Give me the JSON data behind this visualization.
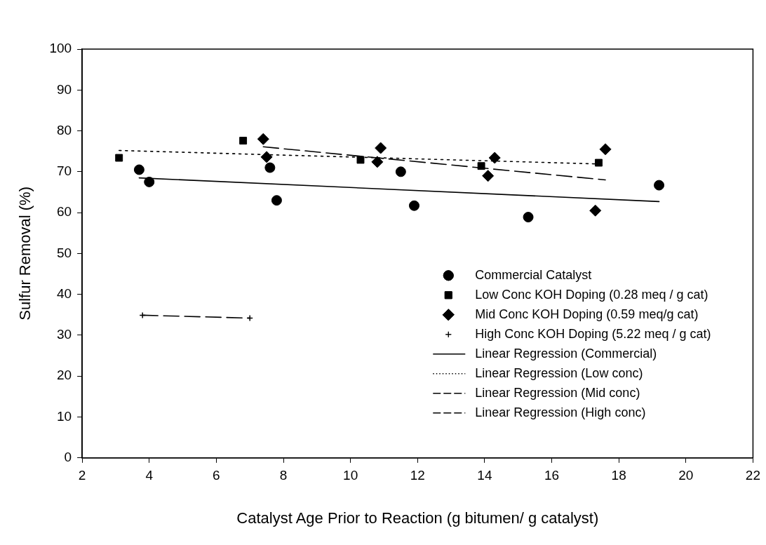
{
  "chart_data": {
    "type": "scatter",
    "xlabel": "Catalyst Age Prior to Reaction (g bitumen/ g catalyst)",
    "ylabel": "Sulfur Removal (%)",
    "xlim": [
      2,
      22
    ],
    "xticks": [
      2,
      4,
      6,
      8,
      10,
      12,
      14,
      16,
      18,
      20,
      22
    ],
    "ylim": [
      0,
      100
    ],
    "yticks": [
      0,
      10,
      20,
      30,
      40,
      50,
      60,
      70,
      80,
      90,
      100
    ],
    "grid": false,
    "legend": "bottom right",
    "series": [
      {
        "name": "Commercial Catalyst",
        "marker": "circle",
        "color": "#000000",
        "x": [
          3.7,
          4.0,
          7.6,
          7.8,
          11.5,
          11.9,
          15.3,
          19.2
        ],
        "values": [
          70.5,
          67.5,
          71.0,
          63.0,
          70.0,
          61.7,
          58.9,
          66.7
        ]
      },
      {
        "name": "Low Conc KOH Doping (0.28 meq / g cat)",
        "marker": "square",
        "color": "#000000",
        "x": [
          3.1,
          6.8,
          10.3,
          13.9,
          17.4
        ],
        "values": [
          73.4,
          77.6,
          72.9,
          71.4,
          72.2
        ]
      },
      {
        "name": "Mid Conc KOH Doping (0.59 meq/g cat)",
        "marker": "diamond",
        "color": "#000000",
        "x": [
          7.4,
          7.5,
          10.8,
          10.9,
          14.1,
          14.3,
          17.3,
          17.6
        ],
        "values": [
          78.0,
          73.6,
          72.4,
          75.8,
          69.0,
          73.4,
          60.5,
          75.5
        ]
      },
      {
        "name": "High Conc KOH Doping (5.22 meq / g cat)",
        "marker": "cross",
        "color": "#000000",
        "x": [
          3.8,
          7.0
        ],
        "values": [
          34.9,
          34.2
        ]
      },
      {
        "name": "Linear Regression (Commercial)",
        "type": "line",
        "marker": "none",
        "line_style": "solid",
        "color": "#000000",
        "x": [
          3.7,
          19.2
        ],
        "values": [
          68.5,
          62.7
        ]
      },
      {
        "name": "Linear Regression (Low conc)",
        "type": "line",
        "marker": "none",
        "line_style": "dotted",
        "color": "#000000",
        "x": [
          3.1,
          17.4
        ],
        "values": [
          75.2,
          71.9
        ]
      },
      {
        "name": "Linear Regression (Mid conc)",
        "type": "line",
        "marker": "none",
        "line_style": "dashed",
        "color": "#000000",
        "x": [
          7.4,
          17.6
        ],
        "values": [
          76.1,
          68.0
        ]
      },
      {
        "name": "Linear Regression (High conc)",
        "type": "line",
        "marker": "none",
        "line_style": "dashed",
        "color": "#000000",
        "x": [
          3.8,
          7.0
        ],
        "values": [
          34.9,
          34.2
        ]
      }
    ]
  }
}
